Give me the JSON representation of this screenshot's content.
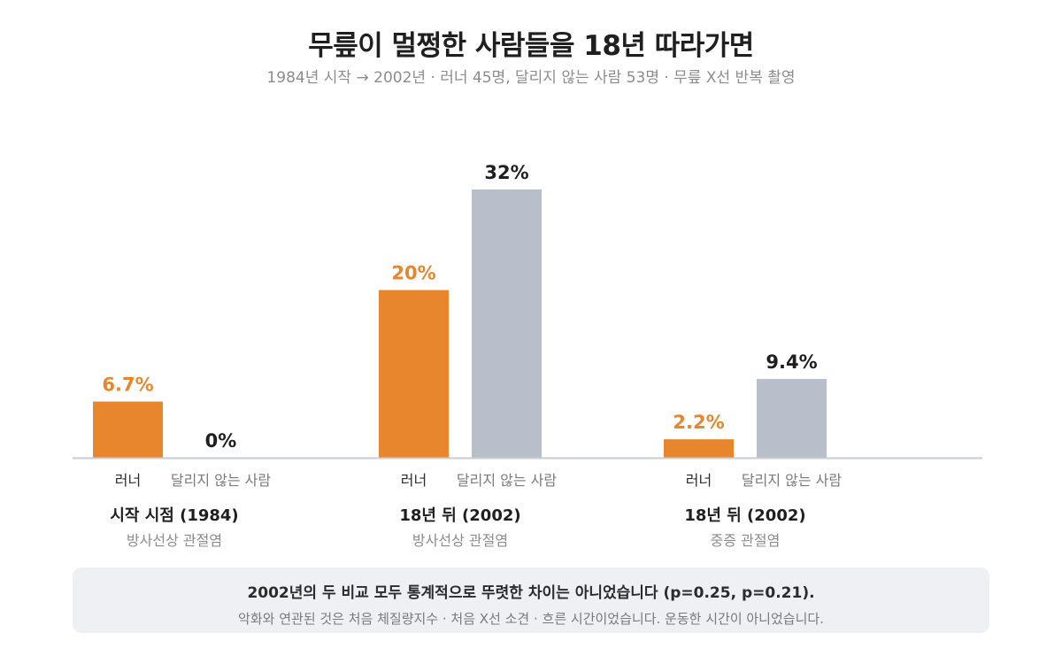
{
  "title": "무릎이 멀쩡한 사람들을 18년 따라가면",
  "subtitle": "1984년 시작 → 2002년 · 러너 45명, 달리지 않는 사람 53명 · 무릎 X선 반복 촬영",
  "colors": {
    "runner": "#e8862e",
    "nonrunner": "#b8bfca",
    "axis": "#c8ccd2",
    "value_dark": "#1f1f1f"
  },
  "chart_data": {
    "type": "bar",
    "unit": "%",
    "series": [
      {
        "name": "러너",
        "values": [
          6.7,
          20,
          2.2
        ],
        "labels": [
          "6.7%",
          "20%",
          "2.2%"
        ]
      },
      {
        "name": "달리지 않는 사람",
        "values": [
          0,
          32,
          9.4
        ],
        "labels": [
          "0%",
          "32%",
          "9.4%"
        ]
      }
    ],
    "groups": [
      {
        "title": "시작 시점 (1984)",
        "subtitle": "방사선상 관절염"
      },
      {
        "title": "18년 뒤 (2002)",
        "subtitle": "방사선상 관절염"
      },
      {
        "title": "18년 뒤 (2002)",
        "subtitle": "중증 관절염"
      }
    ],
    "ylim": [
      0,
      32
    ]
  },
  "note": {
    "main": "2002년의 두 비교 모두 통계적으로 뚜렷한 차이는 아니었습니다 (p=0.25, p=0.21).",
    "sub": "악화와 연관된 것은 처음 체질량지수 · 처음 X선 소견 · 흐른 시간이었습니다. 운동한 시간이 아니었습니다."
  }
}
